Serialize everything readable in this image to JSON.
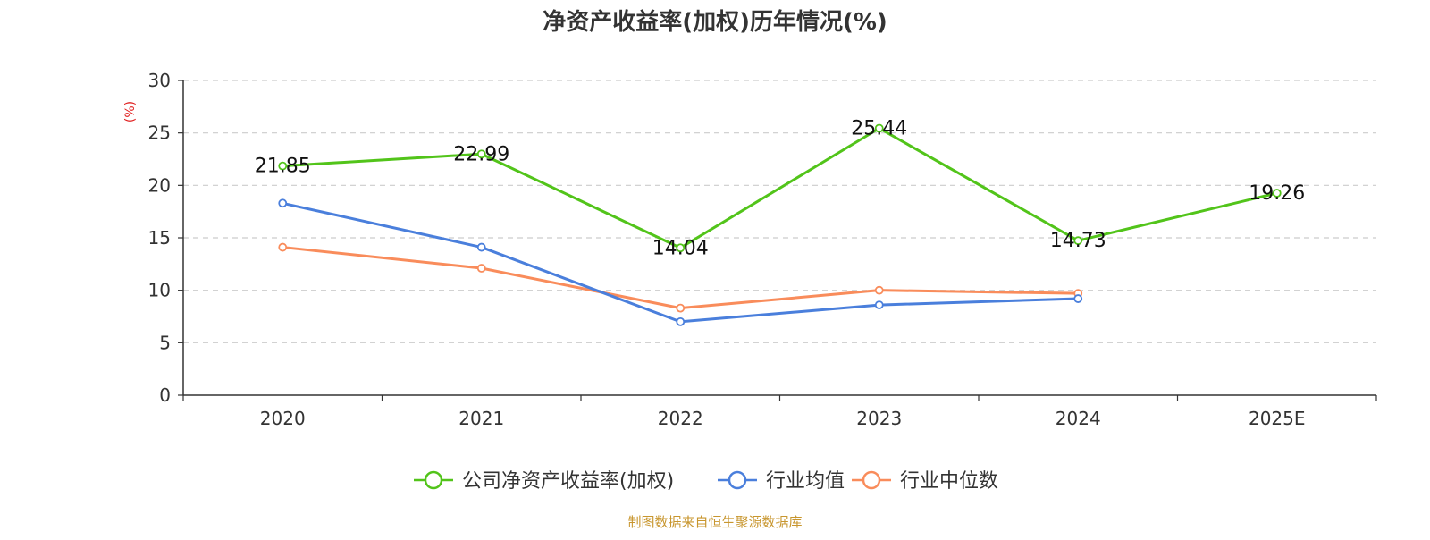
{
  "chart_data": {
    "type": "line",
    "title": "净资产收益率(加权)历年情况(%)",
    "ylabel": "(%)",
    "xlabel": "",
    "ylim": [
      0,
      30
    ],
    "yticks": [
      0,
      5,
      10,
      15,
      20,
      25,
      30
    ],
    "grid": true,
    "legend_position": "bottom",
    "categories": [
      "2020",
      "2021",
      "2022",
      "2023",
      "2024",
      "2025E"
    ],
    "series": [
      {
        "name": "公司净资产收益率(加权)",
        "color": "#52c41a",
        "values": [
          21.85,
          22.99,
          14.04,
          25.44,
          14.73,
          19.26
        ],
        "labels": [
          "21.85",
          "22.99",
          "14.04",
          "25.44",
          "14.73",
          "19.26"
        ],
        "show_labels": true
      },
      {
        "name": "行业均值",
        "color": "#4a7fdc",
        "values": [
          18.3,
          14.1,
          7.0,
          8.6,
          9.2,
          null
        ],
        "show_labels": false
      },
      {
        "name": "行业中位数",
        "color": "#f98c5b",
        "values": [
          14.1,
          12.1,
          8.3,
          10.0,
          9.7,
          null
        ],
        "show_labels": false
      }
    ],
    "source": "制图数据来自恒生聚源数据库",
    "source_color": "#c8962e",
    "ylabel_color": "#e02020"
  }
}
